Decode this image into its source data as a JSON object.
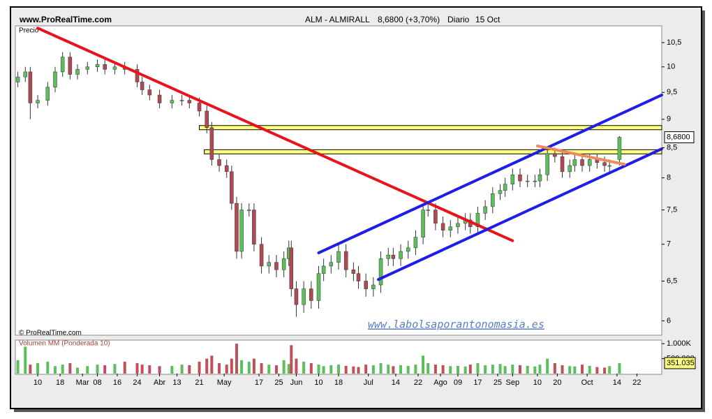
{
  "chart_data": [
    {
      "type": "candlestick",
      "source": "www.ProRealTime.com",
      "title": "ALM - ALMIRALL",
      "subtitle": "8,6800 (+3,70%)",
      "period": "Diario",
      "date": "15 Oct",
      "ylabel": "Precio",
      "copyright": "© ProRealTime.com",
      "watermark": "www.labolsaporantonomasia.es",
      "log_scale": true,
      "grid": false,
      "up_color": "#5cbf5c",
      "down_color": "#b04a52",
      "xlim": [
        0,
        260
      ],
      "ylim": [
        5.83,
        10.86
      ],
      "yticks": [
        {
          "value": 10.5,
          "label": "10,5"
        },
        10,
        {
          "value": 9.5,
          "label": "9,5"
        },
        9,
        {
          "value": 8.5,
          "label": "8,5"
        },
        8,
        {
          "value": 7.5,
          "label": "7,5"
        },
        7,
        {
          "value": 6.5,
          "label": "6,5"
        },
        6
      ],
      "last_price": {
        "value": 8.68,
        "label": "8,6800"
      },
      "x": [
        1,
        4,
        6,
        9,
        13,
        16,
        19,
        22,
        25,
        29,
        33,
        36,
        40,
        44,
        49,
        51,
        54,
        58,
        63,
        67,
        70,
        74,
        77,
        79,
        82,
        85,
        87,
        89,
        91,
        94,
        96,
        99,
        102,
        105,
        108,
        110,
        111,
        113,
        116,
        119,
        122,
        124,
        127,
        130,
        133,
        136,
        138,
        141,
        144,
        147,
        150,
        152,
        155,
        158,
        161,
        164,
        166,
        169,
        172,
        175,
        178,
        181,
        183,
        186,
        189,
        192,
        195,
        197,
        200,
        203,
        206,
        209,
        211,
        214,
        217,
        220,
        223,
        225,
        228,
        231,
        234,
        237,
        239,
        243
      ],
      "open": [
        9.7,
        9.8,
        9.9,
        9.3,
        9.35,
        9.6,
        9.9,
        10.2,
        9.85,
        9.95,
        10.0,
        10.05,
        9.95,
        10.0,
        9.95,
        9.7,
        9.55,
        9.45,
        9.3,
        9.35,
        9.35,
        9.3,
        9.15,
        8.85,
        8.3,
        8.2,
        8.1,
        7.6,
        6.9,
        7.5,
        7.5,
        7.0,
        6.7,
        6.75,
        6.65,
        6.8,
        6.95,
        6.4,
        6.2,
        6.4,
        6.25,
        6.6,
        6.7,
        6.75,
        6.9,
        6.65,
        6.6,
        6.5,
        6.4,
        6.45,
        6.8,
        6.85,
        6.8,
        6.9,
        6.95,
        7.1,
        7.5,
        7.5,
        7.3,
        7.2,
        7.25,
        7.3,
        7.35,
        7.25,
        7.45,
        7.55,
        7.75,
        7.8,
        7.9,
        8.05,
        7.95,
        7.95,
        7.95,
        8.05,
        8.4,
        8.35,
        8.1,
        8.2,
        8.3,
        8.2,
        8.3,
        8.25,
        8.2,
        8.3
      ],
      "high": [
        9.9,
        10.0,
        10.0,
        9.45,
        9.7,
        10.0,
        10.3,
        10.3,
        10.05,
        10.1,
        10.15,
        10.15,
        10.1,
        10.1,
        10.05,
        9.8,
        9.65,
        9.55,
        9.45,
        9.45,
        9.45,
        9.4,
        9.25,
        8.95,
        8.4,
        8.3,
        8.2,
        7.7,
        7.6,
        7.6,
        7.6,
        7.1,
        6.85,
        6.85,
        6.9,
        7.05,
        7.05,
        6.5,
        6.5,
        6.5,
        6.7,
        6.8,
        6.85,
        7.0,
        7.0,
        6.75,
        6.7,
        6.6,
        6.55,
        6.9,
        6.95,
        6.95,
        7.0,
        7.05,
        7.2,
        7.6,
        7.6,
        7.6,
        7.4,
        7.35,
        7.4,
        7.45,
        7.45,
        7.55,
        7.65,
        7.85,
        7.9,
        8.0,
        8.15,
        8.15,
        8.05,
        8.05,
        8.15,
        8.5,
        8.5,
        8.45,
        8.3,
        8.4,
        8.4,
        8.4,
        8.4,
        8.35,
        8.3,
        8.7
      ],
      "low": [
        9.6,
        9.7,
        9.0,
        9.2,
        9.25,
        9.5,
        9.8,
        9.75,
        9.75,
        9.85,
        9.9,
        9.85,
        9.85,
        9.85,
        9.6,
        9.45,
        9.35,
        9.2,
        9.2,
        9.25,
        9.2,
        9.05,
        8.75,
        8.2,
        8.1,
        8.0,
        7.5,
        6.8,
        6.8,
        7.4,
        6.9,
        6.6,
        6.6,
        6.55,
        6.55,
        6.7,
        6.3,
        6.05,
        6.1,
        6.15,
        6.15,
        6.5,
        6.6,
        6.65,
        6.55,
        6.5,
        6.4,
        6.3,
        6.3,
        6.35,
        6.7,
        6.7,
        6.7,
        6.8,
        6.85,
        7.0,
        7.4,
        7.2,
        7.1,
        7.1,
        7.15,
        7.2,
        7.15,
        7.15,
        7.35,
        7.45,
        7.65,
        7.7,
        7.8,
        7.85,
        7.85,
        7.85,
        7.85,
        7.95,
        8.25,
        8.0,
        8.0,
        8.1,
        8.1,
        8.1,
        8.15,
        8.1,
        8.1,
        8.2
      ],
      "close": [
        9.8,
        9.9,
        9.3,
        9.35,
        9.6,
        9.9,
        10.2,
        9.85,
        9.95,
        10.0,
        10.05,
        9.95,
        10.0,
        9.95,
        9.7,
        9.55,
        9.45,
        9.3,
        9.35,
        9.35,
        9.3,
        9.15,
        8.85,
        8.3,
        8.2,
        8.1,
        7.6,
        6.9,
        7.5,
        7.5,
        7.0,
        6.7,
        6.75,
        6.65,
        6.8,
        6.95,
        6.4,
        6.2,
        6.4,
        6.25,
        6.6,
        6.7,
        6.75,
        6.9,
        6.65,
        6.6,
        6.5,
        6.4,
        6.45,
        6.8,
        6.85,
        6.8,
        6.9,
        6.95,
        7.1,
        7.5,
        7.5,
        7.3,
        7.2,
        7.25,
        7.3,
        7.35,
        7.25,
        7.45,
        7.55,
        7.75,
        7.8,
        7.9,
        8.05,
        7.95,
        7.95,
        7.95,
        8.05,
        8.4,
        8.35,
        8.1,
        8.2,
        8.3,
        8.2,
        8.3,
        8.25,
        8.2,
        8.2,
        8.68
      ],
      "levels": [
        {
          "y": 8.85,
          "x": [
            74,
            260
          ]
        },
        {
          "y": 8.43,
          "x": [
            76,
            260
          ]
        }
      ],
      "level_color": "#ffff80",
      "drawings": [
        {
          "x": [
            9,
            200
          ],
          "y": [
            10.81,
            7.05
          ],
          "color": "#e8141c"
        },
        {
          "x": [
            122,
            260
          ],
          "y": [
            6.88,
            9.45
          ],
          "color": "#1e1ee6"
        },
        {
          "x": [
            146,
            260
          ],
          "y": [
            6.52,
            8.48
          ],
          "color": "#1e1ee6"
        },
        {
          "x": [
            210,
            245
          ],
          "y": [
            8.53,
            8.22
          ],
          "color": "#f08a5a"
        }
      ]
    },
    {
      "type": "volume",
      "title": "Volumen MM (Ponderada 10)",
      "color": "#5cbf5c",
      "down_color": "#c0505a",
      "xlim": [
        0,
        260
      ],
      "ylim": [
        0,
        1120000
      ],
      "yticks": [
        {
          "value": 1000000,
          "label": "1.000K"
        },
        {
          "value": 500000,
          "label": "500.000"
        }
      ],
      "last_volume": {
        "value": 351035,
        "label": "351.035"
      },
      "xticks": [
        {
          "value": 9,
          "label": "10"
        },
        {
          "value": 18,
          "label": "18"
        },
        {
          "value": 27,
          "label": "Mar"
        },
        {
          "value": 33,
          "label": "08"
        },
        {
          "value": 41,
          "label": "16"
        },
        {
          "value": 49,
          "label": "24"
        },
        {
          "value": 58,
          "label": "Abr"
        },
        {
          "value": 65,
          "label": "13"
        },
        {
          "value": 74,
          "label": "21"
        },
        {
          "value": 84,
          "label": "May"
        },
        {
          "value": 98,
          "label": "17"
        },
        {
          "value": 106,
          "label": "25"
        },
        {
          "value": 113,
          "label": "Jun"
        },
        {
          "value": 122,
          "label": "10"
        },
        {
          "value": 130,
          "label": "18"
        },
        {
          "value": 142,
          "label": "Jul"
        },
        {
          "value": 153,
          "label": "14"
        },
        {
          "value": 162,
          "label": "22"
        },
        {
          "value": 171,
          "label": "Ago"
        },
        {
          "value": 178,
          "label": "09"
        },
        {
          "value": 186,
          "label": "17"
        },
        {
          "value": 194,
          "label": "25"
        },
        {
          "value": 200,
          "label": "Sep"
        },
        {
          "value": 210,
          "label": "10"
        },
        {
          "value": 218,
          "label": "20"
        },
        {
          "value": 230,
          "label": "Oct"
        },
        {
          "value": 242,
          "label": "14"
        },
        {
          "value": 250,
          "label": "22"
        }
      ],
      "x": [
        1,
        4,
        6,
        9,
        13,
        16,
        19,
        22,
        25,
        29,
        33,
        36,
        40,
        44,
        49,
        51,
        54,
        58,
        63,
        67,
        70,
        74,
        77,
        79,
        82,
        85,
        87,
        89,
        91,
        94,
        96,
        99,
        102,
        105,
        108,
        110,
        111,
        113,
        116,
        119,
        122,
        124,
        127,
        130,
        133,
        136,
        138,
        141,
        144,
        147,
        150,
        152,
        155,
        158,
        161,
        164,
        166,
        169,
        172,
        175,
        178,
        181,
        183,
        186,
        189,
        192,
        195,
        197,
        200,
        203,
        206,
        209,
        211,
        214,
        217,
        220,
        223,
        225,
        228,
        231,
        234,
        237,
        239,
        243
      ],
      "values": [
        450000,
        900000,
        300000,
        350000,
        400000,
        250000,
        300000,
        350000,
        200000,
        250000,
        300000,
        280000,
        320000,
        400000,
        350000,
        300000,
        280000,
        250000,
        260000,
        300000,
        280000,
        400000,
        500000,
        600000,
        350000,
        300000,
        500000,
        1000000,
        450000,
        400000,
        500000,
        350000,
        300000,
        280000,
        450000,
        320000,
        950000,
        500000,
        400000,
        350000,
        300000,
        250000,
        280000,
        300000,
        260000,
        240000,
        220000,
        300000,
        280000,
        350000,
        300000,
        250000,
        280000,
        260000,
        300000,
        600000,
        350000,
        300000,
        280000,
        250000,
        260000,
        240000,
        300000,
        350000,
        280000,
        300000,
        320000,
        250000,
        300000,
        280000,
        260000,
        240000,
        300000,
        500000,
        350000,
        280000,
        250000,
        240000,
        300000,
        260000,
        220000,
        200000,
        250000,
        351035
      ]
    }
  ]
}
